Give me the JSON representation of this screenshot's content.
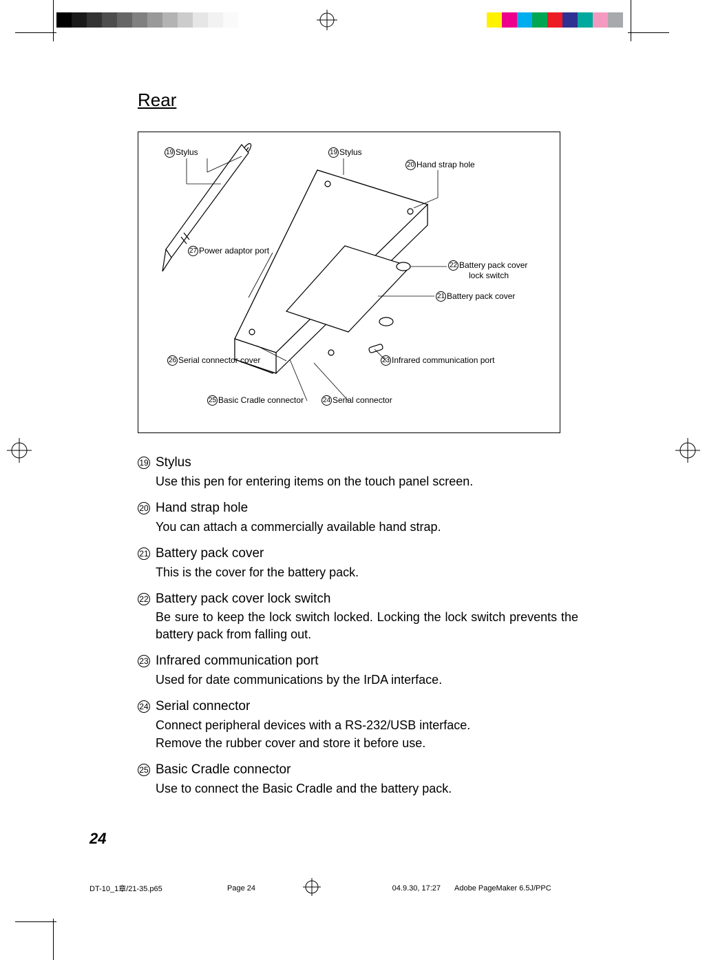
{
  "heading": "Rear",
  "diagram": {
    "callouts": {
      "stylus1": {
        "num": "19",
        "label": "Stylus"
      },
      "stylus2": {
        "num": "19",
        "label": "Stylus"
      },
      "handstrap": {
        "num": "20",
        "label": "Hand strap hole"
      },
      "power": {
        "num": "27",
        "label": "Power adaptor port"
      },
      "lockswitch_a": {
        "num": "22",
        "label": "Battery pack cover"
      },
      "lockswitch_b": "lock switch",
      "battcover": {
        "num": "21",
        "label": "Battery pack cover"
      },
      "serialcover": {
        "num": "26",
        "label": "Serial connector cover"
      },
      "infrared": {
        "num": "23",
        "label": "Infrared communication port"
      },
      "cradle": {
        "num": "25",
        "label": "Basic Cradle connector"
      },
      "serial": {
        "num": "24",
        "label": "Serial connector"
      }
    }
  },
  "items": [
    {
      "num": "19",
      "title": "Stylus",
      "desc": "Use this pen for entering items on the touch panel screen."
    },
    {
      "num": "20",
      "title": "Hand strap hole",
      "desc": "You can attach a commercially available hand strap."
    },
    {
      "num": "21",
      "title": "Battery pack cover",
      "desc": "This is the cover for the battery pack."
    },
    {
      "num": "22",
      "title": "Battery pack cover lock switch",
      "desc": "Be sure to keep the lock switch locked. Locking the lock switch prevents the battery pack from falling out.",
      "justify": true
    },
    {
      "num": "23",
      "title": "Infrared communication port",
      "desc": "Used for date communications by the IrDA interface."
    },
    {
      "num": "24",
      "title": "Serial connector",
      "desc": "Connect peripheral devices with a RS-232/USB interface.\nRemove the rubber cover and store it before use."
    },
    {
      "num": "25",
      "title": "Basic Cradle connector",
      "desc": "Use to connect the Basic Cradle and the battery pack."
    }
  ],
  "pageNumber": "24",
  "footer": {
    "filename": "DT-10_1章/21-35.p65",
    "page": "Page 24",
    "datetime": "04.9.30, 17:27",
    "app": "Adobe PageMaker 6.5J/PPC"
  },
  "bw_swatches": [
    "#000000",
    "#1a1a1a",
    "#333333",
    "#4d4d4d",
    "#666666",
    "#808080",
    "#999999",
    "#b3b3b3",
    "#cccccc",
    "#e6e6e6",
    "#f2f2f2",
    "#fafafa",
    "#ffffff"
  ],
  "color_swatches": [
    "#fff200",
    "#ec008c",
    "#00aeef",
    "#00a651",
    "#ed1c24",
    "#2e3192",
    "#00a99d",
    "#f49ac1",
    "#a7a9ac",
    "#ffffff"
  ]
}
